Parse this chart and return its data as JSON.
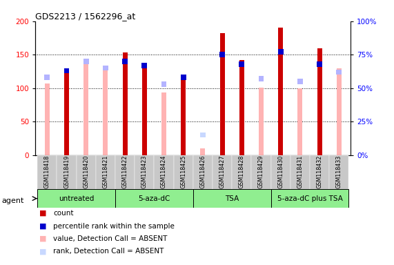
{
  "title": "GDS2213 / 1562296_at",
  "samples": [
    "GSM118418",
    "GSM118419",
    "GSM118420",
    "GSM118421",
    "GSM118422",
    "GSM118423",
    "GSM118424",
    "GSM118425",
    "GSM118426",
    "GSM118427",
    "GSM118428",
    "GSM118429",
    "GSM118430",
    "GSM118431",
    "GSM118432",
    "GSM118433"
  ],
  "count_values": [
    null,
    122,
    null,
    null,
    153,
    138,
    null,
    115,
    null,
    182,
    142,
    null,
    190,
    null,
    160,
    null
  ],
  "count_absent_values": [
    107,
    null,
    142,
    130,
    null,
    null,
    93,
    null,
    10,
    null,
    null,
    101,
    null,
    100,
    null,
    130
  ],
  "percentile_values": [
    null,
    63,
    null,
    null,
    70,
    67,
    null,
    58,
    null,
    75,
    68,
    null,
    77,
    null,
    68,
    null
  ],
  "percentile_absent_values": [
    58,
    null,
    70,
    65,
    null,
    null,
    53,
    null,
    null,
    null,
    null,
    57,
    null,
    55,
    null,
    62
  ],
  "rank_absent_values": [
    null,
    null,
    null,
    null,
    null,
    null,
    null,
    null,
    15,
    null,
    null,
    null,
    null,
    null,
    null,
    null
  ],
  "groups": [
    {
      "label": "untreated",
      "indices": [
        0,
        1,
        2,
        3
      ]
    },
    {
      "label": "5-aza-dC",
      "indices": [
        4,
        5,
        6,
        7
      ]
    },
    {
      "label": "TSA",
      "indices": [
        8,
        9,
        10,
        11
      ]
    },
    {
      "label": "5-aza-dC plus TSA",
      "indices": [
        12,
        13,
        14,
        15
      ]
    }
  ],
  "ylim": [
    0,
    200
  ],
  "y2lim": [
    0,
    100
  ],
  "yticks": [
    0,
    50,
    100,
    150,
    200
  ],
  "y2ticks": [
    0,
    25,
    50,
    75,
    100
  ],
  "color_count": "#cc0000",
  "color_count_absent": "#ffb3b3",
  "color_percentile": "#0000cc",
  "color_percentile_absent": "#b3b3ff",
  "color_rank_absent": "#c8d8ff",
  "group_color": "#90ee90",
  "bar_width": 0.25
}
